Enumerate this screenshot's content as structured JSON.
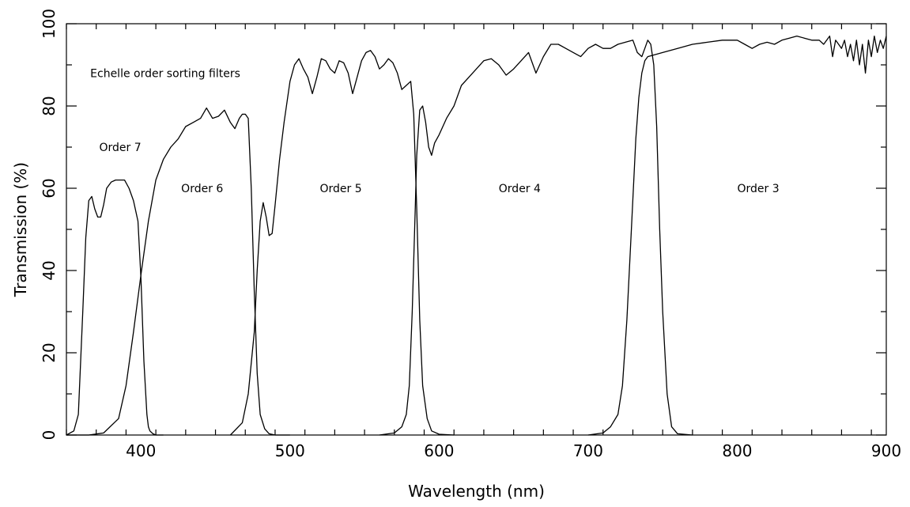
{
  "chart_data": {
    "type": "line",
    "title": "",
    "xlabel": "Wavelength (nm)",
    "ylabel": "Transmission (%)",
    "xlim": [
      350,
      900
    ],
    "ylim": [
      0,
      100
    ],
    "x_ticks": [
      400,
      500,
      600,
      700,
      800,
      900
    ],
    "y_ticks": [
      0,
      20,
      40,
      60,
      80,
      100
    ],
    "x_minor_step": 20,
    "y_minor_step": 10,
    "grid": false,
    "annotations": [
      {
        "text": "Echelle order sorting filters",
        "x": 366,
        "y": 88
      },
      {
        "text": "Order 7",
        "x": 372,
        "y": 70
      },
      {
        "text": "Order 6",
        "x": 427,
        "y": 60
      },
      {
        "text": "Order 5",
        "x": 520,
        "y": 60
      },
      {
        "text": "Order 4",
        "x": 640,
        "y": 60
      },
      {
        "text": "Order 3",
        "x": 800,
        "y": 60
      }
    ],
    "series": [
      {
        "x": [
          350,
          355,
          358,
          361,
          363,
          365,
          367,
          369,
          371,
          373,
          375,
          377,
          380,
          383,
          386,
          389,
          392,
          395,
          398,
          400,
          402,
          404,
          405,
          406,
          408,
          410,
          415
        ],
        "y": [
          0,
          1,
          5,
          30,
          48,
          57,
          58,
          55,
          53,
          53,
          56,
          60,
          61.5,
          62,
          62,
          62,
          60,
          57,
          52,
          38,
          18,
          5,
          2,
          1,
          0.3,
          0,
          0
        ]
      },
      {
        "x": [
          350,
          365,
          375,
          385,
          390,
          395,
          400,
          405,
          410,
          415,
          420,
          425,
          430,
          435,
          440,
          444,
          448,
          452,
          456,
          460,
          463,
          466,
          468,
          470,
          472,
          474,
          476,
          478,
          480,
          483,
          486,
          490,
          500
        ],
        "y": [
          0,
          0,
          0.5,
          4,
          12,
          25,
          39,
          52,
          62,
          67,
          70,
          72,
          75,
          76,
          77,
          79.5,
          77,
          77.5,
          79,
          76,
          74.5,
          77,
          78,
          78,
          77,
          60,
          35,
          15,
          5,
          1.5,
          0.3,
          0,
          0
        ]
      },
      {
        "x": [
          460,
          468,
          472,
          476,
          478,
          480,
          482,
          484,
          486,
          488,
          490,
          493,
          496,
          500,
          503,
          506,
          509,
          512,
          515,
          518,
          521,
          524,
          527,
          530,
          533,
          536,
          539,
          542,
          545,
          548,
          551,
          554,
          557,
          560,
          563,
          566,
          569,
          572,
          575,
          578,
          581,
          583,
          585,
          587,
          589,
          592,
          595,
          600,
          610
        ],
        "y": [
          0,
          3,
          10,
          25,
          40,
          52,
          56.5,
          53,
          48.5,
          49,
          56,
          67,
          76,
          86,
          90,
          91.5,
          89,
          87,
          83,
          87,
          91.5,
          91,
          89,
          88,
          91,
          90.5,
          88,
          83,
          87,
          91,
          93,
          93.5,
          92,
          89,
          90,
          91.5,
          90.5,
          88,
          84,
          85,
          86,
          78,
          55,
          28,
          12,
          4,
          1,
          0.2,
          0
        ]
      },
      {
        "x": [
          560,
          570,
          575,
          578,
          580,
          582,
          584,
          585,
          587,
          589,
          591,
          593,
          595,
          597,
          600,
          605,
          610,
          615,
          620,
          625,
          630,
          635,
          640,
          645,
          650,
          655,
          660,
          665,
          670,
          675,
          680,
          685,
          690,
          695,
          700,
          705,
          710,
          715,
          720,
          725,
          730,
          733,
          736,
          738,
          740,
          742,
          744,
          746,
          748,
          750,
          753,
          756,
          760,
          770
        ],
        "y": [
          0,
          0.5,
          2,
          5,
          12,
          30,
          55,
          68,
          79,
          80,
          76,
          70,
          68,
          71,
          73,
          77,
          80,
          85,
          87,
          89,
          91,
          91.5,
          90,
          87.5,
          89,
          91,
          93,
          88,
          92,
          95,
          95,
          94,
          93,
          92,
          94,
          95,
          94,
          94,
          95,
          95.5,
          96,
          93,
          92,
          94,
          96,
          95,
          90,
          75,
          50,
          30,
          10,
          2,
          0.3,
          0
        ]
      },
      {
        "x": [
          700,
          710,
          715,
          720,
          723,
          726,
          729,
          732,
          734,
          736,
          738,
          740,
          745,
          750,
          760,
          770,
          780,
          790,
          800,
          805,
          810,
          815,
          820,
          825,
          830,
          835,
          840,
          845,
          850,
          855,
          858,
          862,
          864,
          866,
          868,
          870,
          872,
          874,
          876,
          878,
          880,
          882,
          884,
          886,
          888,
          890,
          892,
          894,
          896,
          898,
          900
        ],
        "y": [
          0,
          0.5,
          2,
          5,
          12,
          28,
          50,
          72,
          82,
          88,
          91,
          92,
          92.5,
          93,
          94,
          95,
          95.5,
          96,
          96,
          95,
          94,
          95,
          95.5,
          95,
          96,
          96.5,
          97,
          96.5,
          96,
          96,
          95,
          97,
          92,
          96,
          95,
          94,
          96,
          92,
          95,
          91,
          96,
          90,
          95,
          88,
          96,
          92,
          97,
          93,
          96,
          94,
          97
        ]
      }
    ]
  }
}
